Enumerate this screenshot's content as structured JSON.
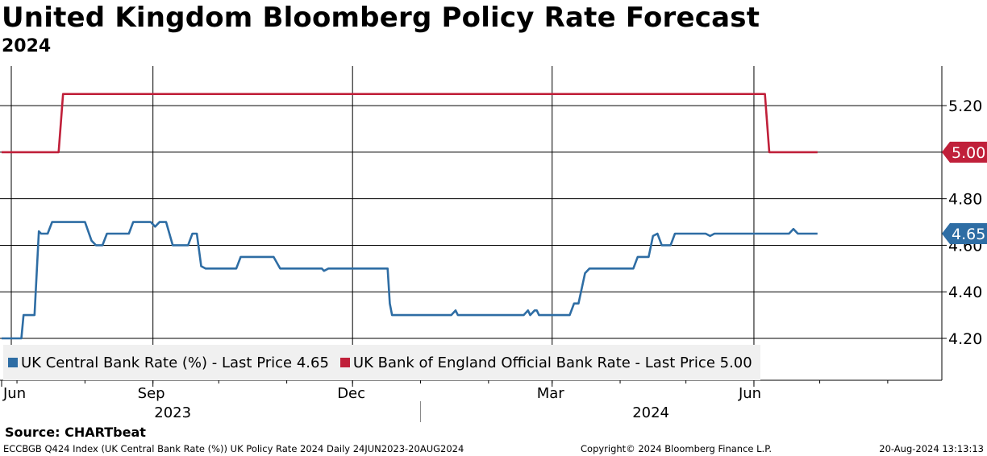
{
  "header": {
    "title": "United Kingdom Bloomberg Policy Rate Forecast",
    "subtitle": "2024"
  },
  "chart_data": {
    "type": "line",
    "title": "United Kingdom Bloomberg Policy Rate Forecast",
    "subtitle": "2024",
    "xlabel": "",
    "ylabel": "",
    "ylim": [
      4.02,
      5.37
    ],
    "y_ticks": [
      4.2,
      4.4,
      4.6,
      4.8,
      5.0,
      5.2
    ],
    "y_tick_labels": [
      "4.20",
      "4.40",
      "4.60",
      "4.80",
      "5.00",
      "5.20"
    ],
    "x_range": [
      "2023-06-24",
      "2024-08-20"
    ],
    "x_ticks": [
      {
        "label": "Jun",
        "date": "2023-06-24"
      },
      {
        "label": "Sep",
        "date": "2023-09-01"
      },
      {
        "label": "Dec",
        "date": "2023-12-01"
      },
      {
        "label": "Mar",
        "date": "2024-03-01"
      },
      {
        "label": "Jun",
        "date": "2024-06-01"
      }
    ],
    "year_labels": [
      {
        "label": "2023",
        "date": "2023-09-10"
      },
      {
        "label": "2024",
        "date": "2024-04-15"
      }
    ],
    "year_separator_date": "2024-01-01",
    "grid": true,
    "legend_position": "bottom-left",
    "series": [
      {
        "name": "UK Central Bank Rate (%) - Last Price 4.65",
        "color": "#2e6da4",
        "last_value": "4.65",
        "points": [
          [
            "2023-06-24",
            4.2
          ],
          [
            "2023-07-03",
            4.2
          ],
          [
            "2023-07-04",
            4.3
          ],
          [
            "2023-07-09",
            4.3
          ],
          [
            "2023-07-11",
            4.66
          ],
          [
            "2023-07-12",
            4.65
          ],
          [
            "2023-07-15",
            4.65
          ],
          [
            "2023-07-17",
            4.7
          ],
          [
            "2023-08-01",
            4.7
          ],
          [
            "2023-08-04",
            4.62
          ],
          [
            "2023-08-06",
            4.6
          ],
          [
            "2023-08-09",
            4.6
          ],
          [
            "2023-08-11",
            4.65
          ],
          [
            "2023-08-21",
            4.65
          ],
          [
            "2023-08-23",
            4.7
          ],
          [
            "2023-08-31",
            4.7
          ],
          [
            "2023-09-02",
            4.68
          ],
          [
            "2023-09-04",
            4.7
          ],
          [
            "2023-09-07",
            4.7
          ],
          [
            "2023-09-10",
            4.6
          ],
          [
            "2023-09-17",
            4.6
          ],
          [
            "2023-09-19",
            4.65
          ],
          [
            "2023-09-21",
            4.65
          ],
          [
            "2023-09-23",
            4.51
          ],
          [
            "2023-09-25",
            4.5
          ],
          [
            "2023-10-09",
            4.5
          ],
          [
            "2023-10-11",
            4.55
          ],
          [
            "2023-10-26",
            4.55
          ],
          [
            "2023-10-29",
            4.5
          ],
          [
            "2023-11-17",
            4.5
          ],
          [
            "2023-11-18",
            4.49
          ],
          [
            "2023-11-20",
            4.5
          ],
          [
            "2023-12-17",
            4.5
          ],
          [
            "2023-12-18",
            4.35
          ],
          [
            "2023-12-19",
            4.3
          ],
          [
            "2024-01-15",
            4.3
          ],
          [
            "2024-01-17",
            4.32
          ],
          [
            "2024-01-18",
            4.3
          ],
          [
            "2024-02-17",
            4.3
          ],
          [
            "2024-02-19",
            4.32
          ],
          [
            "2024-02-20",
            4.3
          ],
          [
            "2024-02-22",
            4.32
          ],
          [
            "2024-02-23",
            4.32
          ],
          [
            "2024-02-24",
            4.3
          ],
          [
            "2024-03-09",
            4.3
          ],
          [
            "2024-03-11",
            4.35
          ],
          [
            "2024-03-13",
            4.35
          ],
          [
            "2024-03-16",
            4.48
          ],
          [
            "2024-03-18",
            4.5
          ],
          [
            "2024-04-07",
            4.5
          ],
          [
            "2024-04-09",
            4.55
          ],
          [
            "2024-04-14",
            4.55
          ],
          [
            "2024-04-16",
            4.64
          ],
          [
            "2024-04-18",
            4.65
          ],
          [
            "2024-04-20",
            4.6
          ],
          [
            "2024-04-24",
            4.6
          ],
          [
            "2024-04-26",
            4.65
          ],
          [
            "2024-05-10",
            4.65
          ],
          [
            "2024-05-12",
            4.64
          ],
          [
            "2024-05-14",
            4.65
          ],
          [
            "2024-06-17",
            4.65
          ],
          [
            "2024-06-19",
            4.67
          ],
          [
            "2024-06-21",
            4.65
          ],
          [
            "2024-06-30",
            4.65
          ]
        ]
      },
      {
        "name": "UK Bank of England Official Bank Rate - Last Price 5.00",
        "color": "#c0203a",
        "last_value": "5.00",
        "points": [
          [
            "2023-06-24",
            5.0
          ],
          [
            "2023-07-20",
            5.0
          ],
          [
            "2023-07-22",
            5.25
          ],
          [
            "2024-06-06",
            5.25
          ],
          [
            "2024-06-08",
            5.0
          ],
          [
            "2024-06-30",
            5.0
          ]
        ]
      }
    ]
  },
  "legend": {
    "items": [
      {
        "label": "UK Central Bank Rate (%) - Last Price 4.65",
        "color": "#2e6da4"
      },
      {
        "label": "UK Bank of England Official Bank Rate - Last Price 5.00",
        "color": "#c0203a"
      }
    ]
  },
  "footer": {
    "source": "Source: CHARTbeat",
    "left": "ECCBGB Q424 Index (UK Central Bank Rate (%)) UK Policy Rate 2024  Daily 24JUN2023-20AUG2024",
    "middle": "Copyright© 2024 Bloomberg Finance L.P.",
    "right": "20-Aug-2024 13:13:13"
  }
}
